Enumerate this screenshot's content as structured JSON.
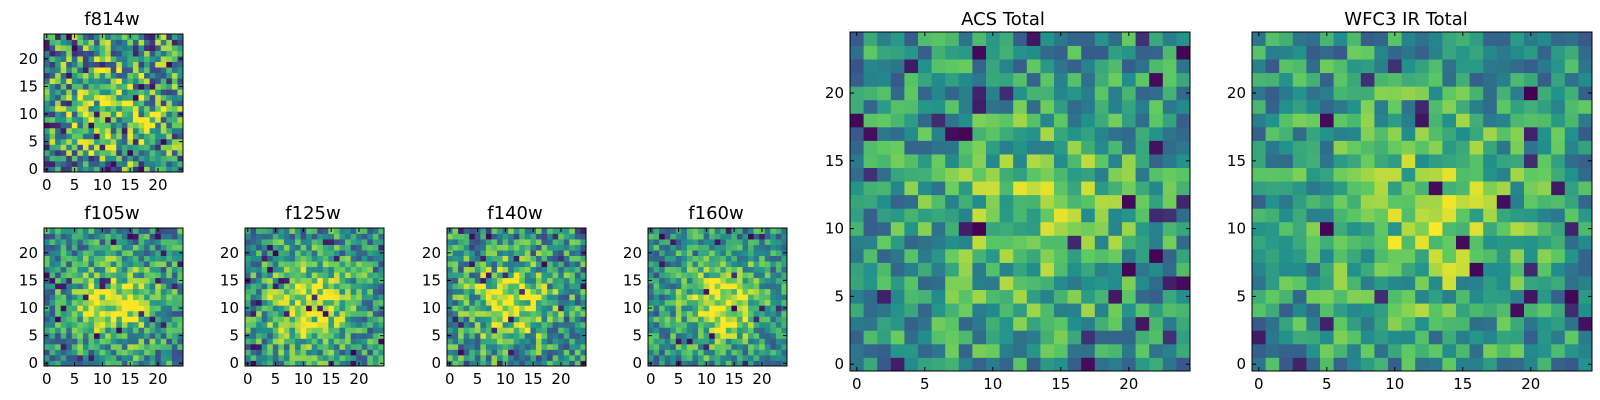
{
  "chart_data": [
    {
      "type": "heatmap",
      "title": "f814w",
      "xlim": [
        0,
        25
      ],
      "ylim": [
        0,
        25
      ],
      "xticks": [
        0,
        5,
        10,
        15,
        20
      ],
      "yticks": [
        0,
        5,
        10,
        15,
        20
      ],
      "grid_size": 25,
      "pattern": {
        "center": [
          12,
          11
        ],
        "sigma": 6.0,
        "peak": 0.45,
        "noise": 0.85,
        "dark_fraction": 0.05,
        "seed": 11
      }
    },
    {
      "type": "heatmap",
      "title": "f105w",
      "xlim": [
        0,
        25
      ],
      "ylim": [
        0,
        25
      ],
      "xticks": [
        0,
        5,
        10,
        15,
        20
      ],
      "yticks": [
        0,
        5,
        10,
        15,
        20
      ],
      "grid_size": 25,
      "pattern": {
        "center": [
          12,
          11
        ],
        "sigma": 5.0,
        "peak": 0.8,
        "noise": 0.6,
        "dark_fraction": 0.04,
        "seed": 23
      }
    },
    {
      "type": "heatmap",
      "title": "f125w",
      "xlim": [
        0,
        25
      ],
      "ylim": [
        0,
        25
      ],
      "xticks": [
        0,
        5,
        10,
        15,
        20
      ],
      "yticks": [
        0,
        5,
        10,
        15,
        20
      ],
      "grid_size": 25,
      "pattern": {
        "center": [
          11,
          11
        ],
        "sigma": 5.5,
        "peak": 0.75,
        "noise": 0.6,
        "dark_fraction": 0.05,
        "seed": 37
      }
    },
    {
      "type": "heatmap",
      "title": "f140w",
      "xlim": [
        0,
        25
      ],
      "ylim": [
        0,
        25
      ],
      "xticks": [
        0,
        5,
        10,
        15,
        20
      ],
      "yticks": [
        0,
        5,
        10,
        15,
        20
      ],
      "grid_size": 25,
      "pattern": {
        "center": [
          11,
          11
        ],
        "sigma": 5.0,
        "peak": 0.75,
        "noise": 0.65,
        "dark_fraction": 0.05,
        "seed": 41
      }
    },
    {
      "type": "heatmap",
      "title": "f160w",
      "xlim": [
        0,
        25
      ],
      "ylim": [
        0,
        25
      ],
      "xticks": [
        0,
        5,
        10,
        15,
        20
      ],
      "yticks": [
        0,
        5,
        10,
        15,
        20
      ],
      "grid_size": 25,
      "pattern": {
        "center": [
          13,
          11
        ],
        "sigma": 5.0,
        "peak": 0.85,
        "noise": 0.55,
        "dark_fraction": 0.04,
        "seed": 53
      }
    },
    {
      "type": "heatmap",
      "title": "ACS Total",
      "xlim": [
        0,
        25
      ],
      "ylim": [
        0,
        25
      ],
      "xticks": [
        0,
        5,
        10,
        15,
        20
      ],
      "yticks": [
        0,
        5,
        10,
        15,
        20
      ],
      "grid_size": 25,
      "pattern": {
        "center": [
          13,
          11
        ],
        "sigma": 6.0,
        "peak": 0.45,
        "noise": 0.5,
        "dark_fraction": 0.05,
        "seed": 67
      }
    },
    {
      "type": "heatmap",
      "title": "WFC3 IR Total",
      "xlim": [
        0,
        25
      ],
      "ylim": [
        0,
        25
      ],
      "xticks": [
        0,
        5,
        10,
        15,
        20
      ],
      "yticks": [
        0,
        5,
        10,
        15,
        20
      ],
      "grid_size": 25,
      "pattern": {
        "center": [
          12,
          11
        ],
        "sigma": 6.0,
        "peak": 0.5,
        "noise": 0.5,
        "dark_fraction": 0.04,
        "seed": 79
      }
    }
  ],
  "colormap": [
    "#440154",
    "#3b528b",
    "#21918c",
    "#5ec962",
    "#fde725"
  ]
}
